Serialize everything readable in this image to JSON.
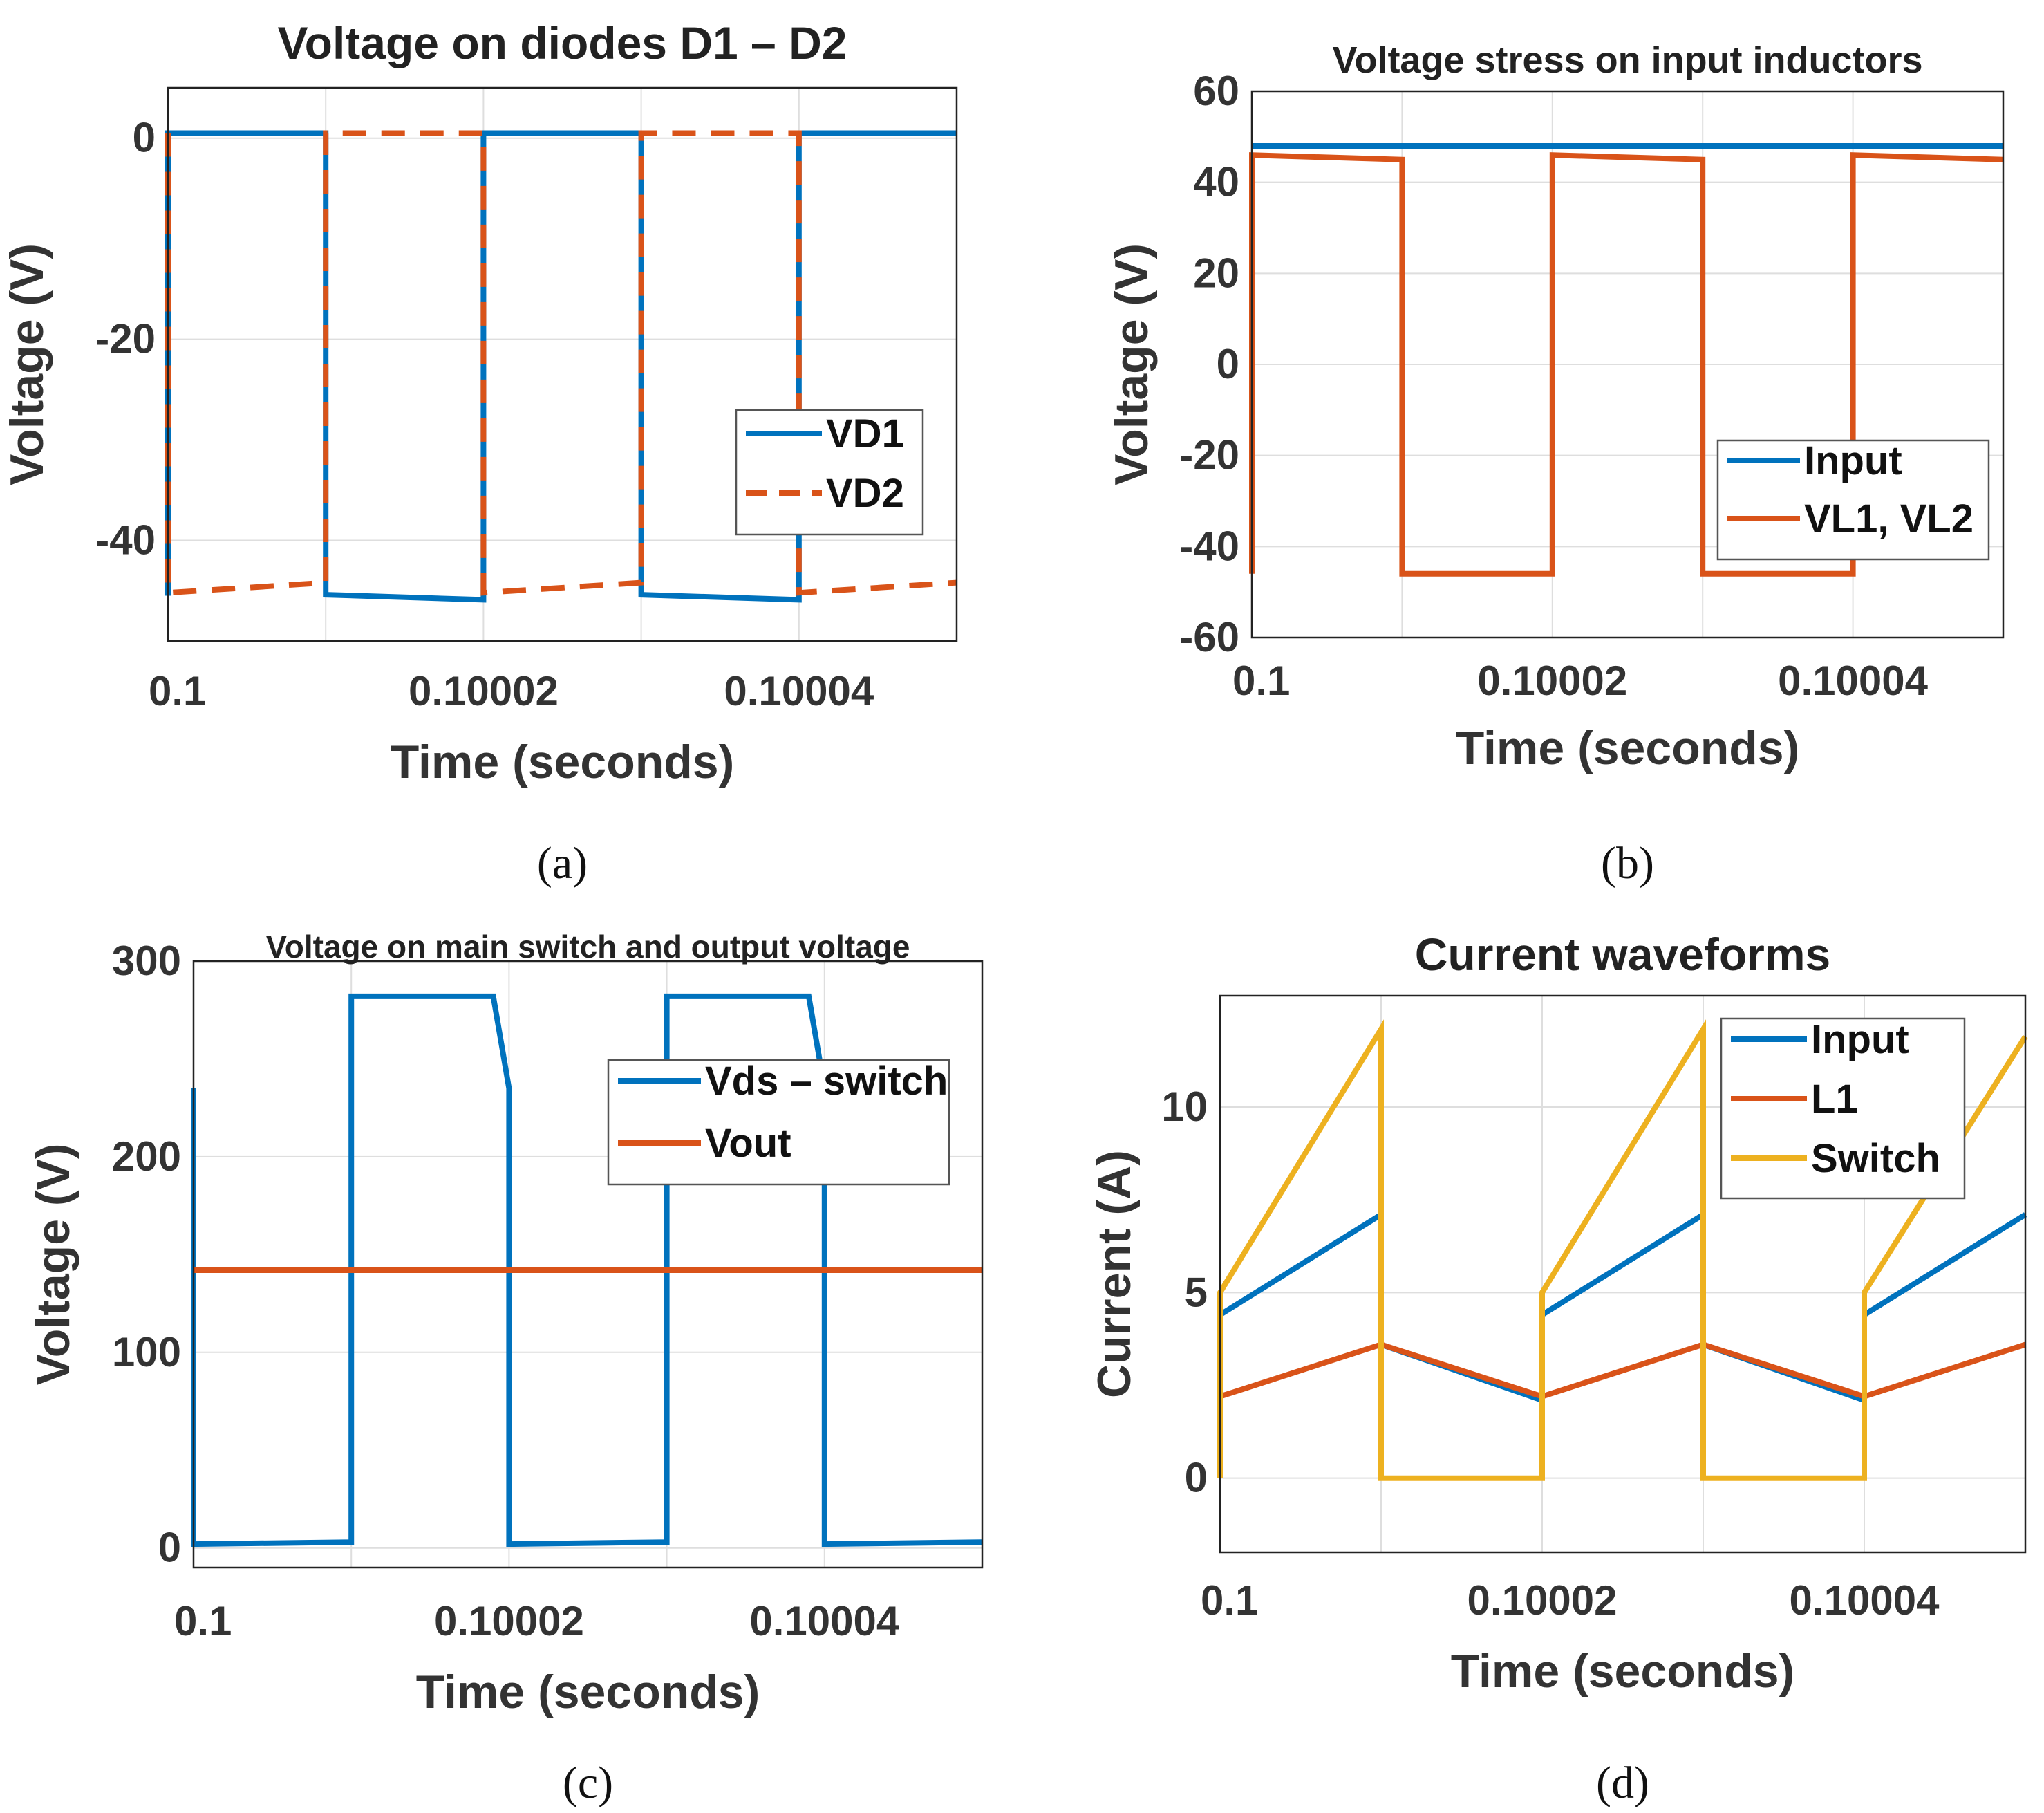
{
  "chart_data": [
    {
      "id": "a",
      "type": "line",
      "caption": "(a)",
      "title": "Voltage on diodes D1 – D2",
      "xlabel": "Time (seconds)",
      "ylabel": "Voltage (V)",
      "xlim": [
        0.1,
        0.10005
      ],
      "ylim": [
        -50,
        5
      ],
      "xticks": [
        0.1,
        0.10002,
        0.10004
      ],
      "xtick_labels": [
        "0.1",
        "0.10002",
        "0.10004"
      ],
      "yticks": [
        -40,
        -20,
        0
      ],
      "ytick_labels": [
        "-40",
        "-20",
        "0"
      ],
      "legend": "right",
      "series": [
        {
          "name": "VD1",
          "color": "#0072BD",
          "dash": false,
          "x": [
            0.1,
            0.1,
            0.10001,
            0.10001,
            0.10002,
            0.10002,
            0.10003,
            0.10003,
            0.10004,
            0.10004,
            0.10005
          ],
          "y": [
            -45.5,
            0.5,
            0.5,
            -45.4,
            -45.9,
            0.5,
            0.5,
            -45.4,
            -45.9,
            0.5,
            0.5
          ]
        },
        {
          "name": "VD2",
          "color": "#D95319",
          "dash": true,
          "x": [
            0.1,
            0.1,
            0.10001,
            0.10001,
            0.10002,
            0.10002,
            0.10003,
            0.10003,
            0.10004,
            0.10004,
            0.10005
          ],
          "y": [
            0.5,
            -45.2,
            -44.2,
            0.5,
            0.5,
            -45.2,
            -44.2,
            0.5,
            0.5,
            -45.2,
            -44.2
          ]
        }
      ]
    },
    {
      "id": "b",
      "type": "line",
      "caption": "(b)",
      "title": "Voltage stress on input inductors",
      "xlabel": "Time (seconds)",
      "ylabel": "Voltage (V)",
      "xlim": [
        0.1,
        0.10005
      ],
      "ylim": [
        -60,
        60
      ],
      "xticks": [
        0.1,
        0.10002,
        0.10004
      ],
      "xtick_labels": [
        "0.1",
        "0.10002",
        "0.10004"
      ],
      "yticks": [
        -60,
        -40,
        -20,
        0,
        20,
        40,
        60
      ],
      "ytick_labels": [
        "-60",
        "-40",
        "-20",
        "0",
        "20",
        "40",
        "60"
      ],
      "legend": "lower-right",
      "series": [
        {
          "name": "Input",
          "color": "#0072BD",
          "dash": false,
          "x": [
            0.1,
            0.10005
          ],
          "y": [
            48,
            48
          ]
        },
        {
          "name": "VL1, VL2",
          "color": "#D95319",
          "dash": false,
          "x": [
            0.1,
            0.1,
            0.10001,
            0.10001,
            0.10002,
            0.10002,
            0.10003,
            0.10003,
            0.10004,
            0.10004,
            0.10005
          ],
          "y": [
            -46,
            46,
            45,
            -46,
            -46,
            46,
            45,
            -46,
            -46,
            46,
            45
          ]
        }
      ]
    },
    {
      "id": "c",
      "type": "line",
      "caption": "(c)",
      "title": "Voltage on main switch and output voltage",
      "xlabel": "Time (seconds)",
      "ylabel": "Voltage (V)",
      "xlim": [
        0.1,
        0.10005
      ],
      "ylim": [
        -10,
        300
      ],
      "xticks": [
        0.1,
        0.10002,
        0.10004
      ],
      "xtick_labels": [
        "0.1",
        "0.10002",
        "0.10004"
      ],
      "yticks": [
        0,
        100,
        200,
        300
      ],
      "ytick_labels": [
        "0",
        "100",
        "200",
        "300"
      ],
      "legend": "top-right",
      "series": [
        {
          "name": "Vds – switch",
          "color": "#0072BD",
          "dash": false,
          "x": [
            0.1,
            0.1,
            0.10001,
            0.10001,
            0.100019,
            0.10002,
            0.10002,
            0.10003,
            0.10003,
            0.100039,
            0.10004,
            0.10004,
            0.10005
          ],
          "y": [
            235,
            2,
            3,
            282,
            282,
            235,
            2,
            3,
            282,
            282,
            235,
            2,
            3
          ]
        },
        {
          "name": "Vout",
          "color": "#D95319",
          "dash": false,
          "x": [
            0.1,
            0.10005
          ],
          "y": [
            142,
            142
          ]
        }
      ]
    },
    {
      "id": "d",
      "type": "line",
      "caption": "(d)",
      "title": "Current waveforms",
      "xlabel": "Time (seconds)",
      "ylabel": "Current (A)",
      "xlim": [
        0.1,
        0.10005
      ],
      "ylim": [
        -2,
        13
      ],
      "xticks": [
        0.1,
        0.10002,
        0.10004
      ],
      "xtick_labels": [
        "0.1",
        "0.10002",
        "0.10004"
      ],
      "yticks": [
        0,
        5,
        10
      ],
      "ytick_labels": [
        "0",
        "5",
        "10"
      ],
      "legend": "top-right",
      "series": [
        {
          "name": "Input",
          "color": "#0072BD",
          "dash": false,
          "x": [
            0.1,
            0.10001,
            0.10001,
            0.10002,
            0.10002,
            0.10003,
            0.10003,
            0.10004,
            0.10004,
            0.10005
          ],
          "y": [
            4.4,
            7.1,
            3.6,
            2.1,
            4.4,
            7.1,
            3.6,
            2.1,
            4.4,
            7.1
          ]
        },
        {
          "name": "L1",
          "color": "#D95319",
          "dash": false,
          "x": [
            0.1,
            0.10001,
            0.10002,
            0.10003,
            0.10004,
            0.10005
          ],
          "y": [
            2.2,
            3.6,
            2.2,
            3.6,
            2.2,
            3.6
          ]
        },
        {
          "name": "Switch",
          "color": "#EDB120",
          "dash": false,
          "x": [
            0.1,
            0.1,
            0.10001,
            0.10001,
            0.10002,
            0.10002,
            0.10003,
            0.10003,
            0.10004,
            0.10004,
            0.10005
          ],
          "y": [
            0,
            5,
            12.1,
            0,
            0,
            5,
            12.1,
            0,
            0,
            5,
            11.9
          ]
        }
      ]
    }
  ]
}
